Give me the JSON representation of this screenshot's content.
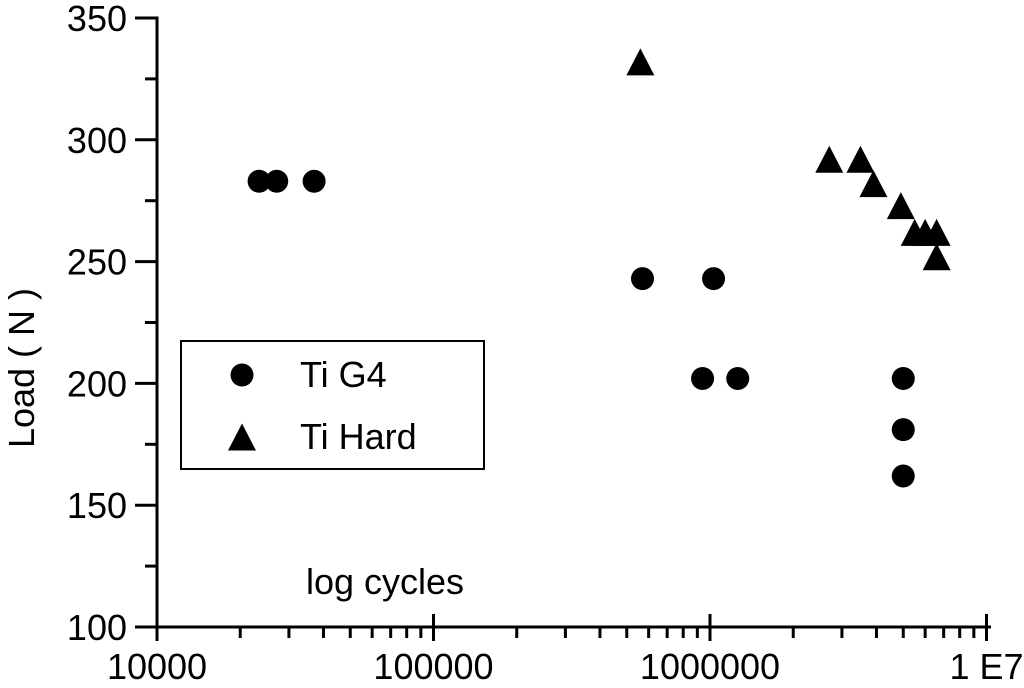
{
  "colors": {
    "ink": "#000000",
    "background": "#ffffff"
  },
  "ylabel": "Load ( N )",
  "annotation": "log cycles",
  "legend": {
    "items": [
      {
        "label": "Ti G4",
        "marker": "circle"
      },
      {
        "label": "Ti Hard",
        "marker": "triangle"
      }
    ]
  },
  "chart_data": {
    "type": "scatter",
    "title": "",
    "xlabel": "log cycles",
    "ylabel": "Load ( N )",
    "x_scale": "log",
    "xlim": [
      10000,
      10000000
    ],
    "ylim": [
      100,
      350
    ],
    "grid": false,
    "legend_position": "center-left",
    "x_ticks": [
      {
        "value": 10000,
        "label": "10000"
      },
      {
        "value": 100000,
        "label": "100000"
      },
      {
        "value": 1000000,
        "label": "1000000"
      },
      {
        "value": 10000000,
        "label": "1 E7"
      }
    ],
    "x_minor_multipliers": [
      2,
      3,
      4,
      5,
      6,
      7,
      8,
      9
    ],
    "y_ticks": [
      {
        "value": 350,
        "label": "350"
      },
      {
        "value": 300,
        "label": "300"
      },
      {
        "value": 250,
        "label": "250"
      },
      {
        "value": 200,
        "label": "200"
      },
      {
        "value": 150,
        "label": "150"
      },
      {
        "value": 100,
        "label": "100"
      }
    ],
    "y_minor_ticks": [
      325,
      275,
      225,
      175,
      125
    ],
    "series": [
      {
        "name": "Ti G4",
        "marker": "circle",
        "points": [
          [
            23400,
            283
          ],
          [
            27100,
            283
          ],
          [
            37000,
            283
          ],
          [
            570000,
            243
          ],
          [
            1030000,
            243
          ],
          [
            940000,
            202
          ],
          [
            1260000,
            202
          ],
          [
            5000000,
            202
          ],
          [
            5000000,
            181
          ],
          [
            5000000,
            162
          ]
        ]
      },
      {
        "name": "Ti Hard",
        "marker": "triangle",
        "points": [
          [
            560000,
            332
          ],
          [
            2700000,
            292
          ],
          [
            3500000,
            292
          ],
          [
            3900000,
            282
          ],
          [
            4900000,
            273
          ],
          [
            5500000,
            262
          ],
          [
            6000000,
            262
          ],
          [
            6600000,
            262
          ],
          [
            6600000,
            252
          ]
        ]
      }
    ]
  }
}
